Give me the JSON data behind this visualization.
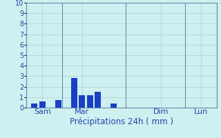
{
  "bar_positions": [
    1,
    2,
    4,
    6,
    7,
    8,
    9,
    11,
    16,
    21
  ],
  "bar_heights": [
    0.4,
    0.6,
    0.7,
    2.8,
    1.2,
    1.2,
    1.5,
    0.4,
    0.0,
    0.0
  ],
  "bar_color": "#1a3fc4",
  "bar_width": 0.8,
  "xlim": [
    0,
    24
  ],
  "ylim": [
    0,
    10
  ],
  "yticks": [
    0,
    1,
    2,
    3,
    4,
    5,
    6,
    7,
    8,
    9,
    10
  ],
  "xtick_positions": [
    2.0,
    7.0,
    17.0,
    22.0
  ],
  "xtick_labels": [
    "Sam",
    "Mar",
    "Dim",
    "Lun"
  ],
  "vline_positions": [
    0,
    4.5,
    12.5,
    20.0,
    24.0
  ],
  "xlabel": "Précipitations 24h ( mm )",
  "xlabel_fontsize": 8.5,
  "ytick_fontsize": 7,
  "xtick_fontsize": 8,
  "background_color": "#cef0f0",
  "grid_color": "#aacece",
  "axis_color": "#6688aa",
  "label_color": "#2244aa"
}
